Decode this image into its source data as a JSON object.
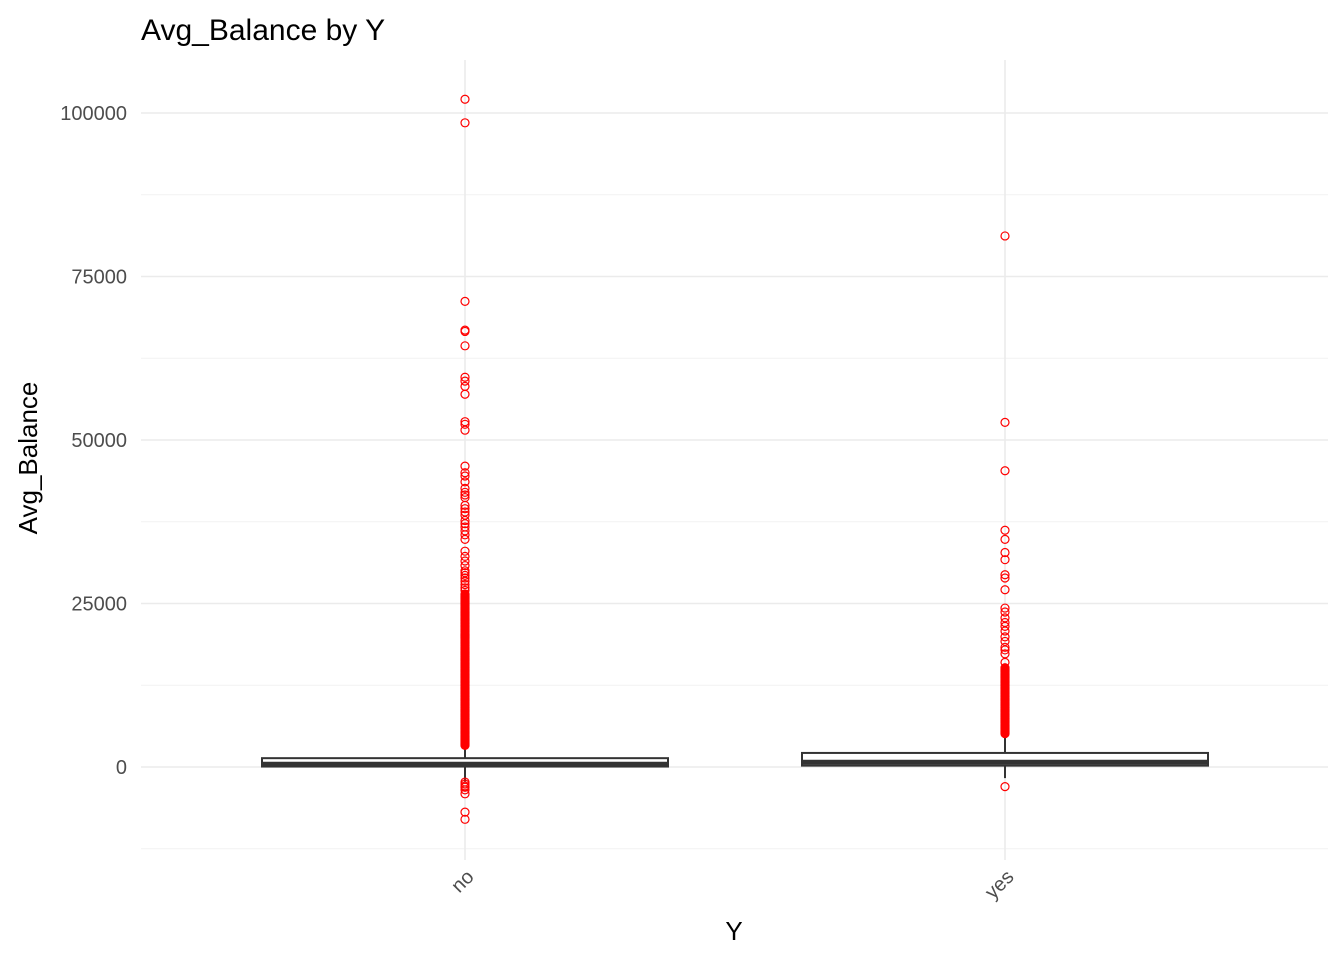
{
  "chart_data": {
    "type": "box",
    "title": "Avg_Balance by Y",
    "xlabel": "Y",
    "ylabel": "Avg_Balance",
    "categories": [
      "no",
      "yes"
    ],
    "y_ticks": [
      0,
      25000,
      50000,
      75000,
      100000
    ],
    "y_tick_labels": [
      "0",
      "25000",
      "50000",
      "75000",
      "100000"
    ],
    "ylim": [
      -12500,
      107500
    ],
    "grid": true,
    "outlier_color": "#ff0000",
    "box_line_color": "#333333",
    "boxes": [
      {
        "category": "no",
        "q1": 70,
        "median": 420,
        "q3": 1350,
        "whisker_low": -2200,
        "whisker_high": 3250,
        "outliers_dense_range": [
          3300,
          26500
        ],
        "outliers": [
          102100,
          98500,
          71200,
          66800,
          66600,
          64400,
          59600,
          59000,
          58200,
          57000,
          52800,
          52400,
          51500,
          46000,
          45000,
          44500,
          43600,
          42600,
          42000,
          41600,
          41200,
          40000,
          39500,
          39000,
          38500,
          37700,
          37200,
          36700,
          36100,
          35500,
          34800,
          33000,
          32200,
          31500,
          30800,
          30000,
          29700,
          29300,
          28900,
          28400,
          27900,
          27400,
          27000,
          -2300,
          -2600,
          -2900,
          -3100,
          -3500,
          -4100,
          -6900,
          -8000
        ]
      },
      {
        "category": "yes",
        "q1": 210,
        "median": 730,
        "q3": 2150,
        "whisker_low": -1700,
        "whisker_high": 5050,
        "outliers_dense_range": [
          5100,
          15200
        ],
        "outliers": [
          81200,
          52700,
          45300,
          36200,
          34800,
          32800,
          31700,
          29400,
          28900,
          27100,
          24300,
          23700,
          22800,
          22100,
          21500,
          20800,
          19900,
          19200,
          18300,
          17900,
          17300,
          16000,
          -3000
        ]
      }
    ]
  }
}
